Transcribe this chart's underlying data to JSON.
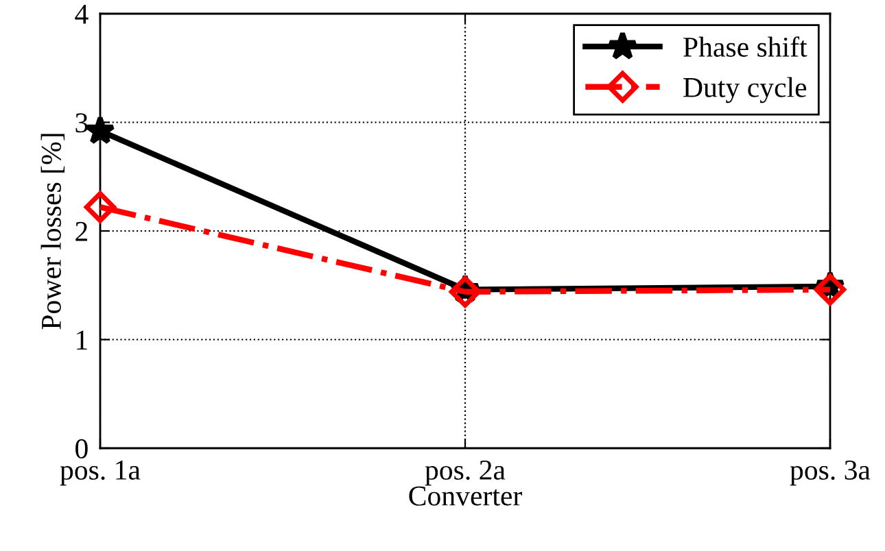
{
  "chart_data": {
    "type": "line",
    "xlabel": "Converter",
    "ylabel": "Power losses [%]",
    "categories": [
      "pos. 1a",
      "pos. 2a",
      "pos. 3a"
    ],
    "series": [
      {
        "name": "Phase shift",
        "color": "#000000",
        "values": [
          2.92,
          1.46,
          1.49
        ],
        "marker": "star",
        "line_style": "solid"
      },
      {
        "name": "Duty cycle",
        "color": "#ff0000",
        "values": [
          2.22,
          1.44,
          1.46
        ],
        "marker": "diamond",
        "line_style": "dashdot"
      }
    ],
    "ylim": [
      0,
      4
    ],
    "yticks": [
      0,
      1,
      2,
      3,
      4
    ],
    "grid": true,
    "legend": "top right"
  }
}
